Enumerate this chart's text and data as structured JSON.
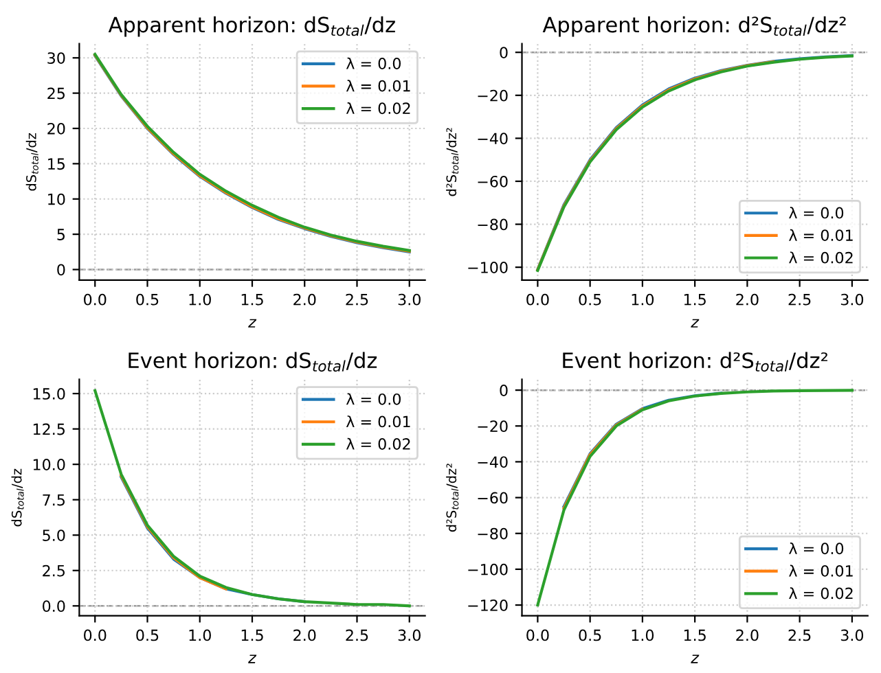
{
  "chart_data": [
    {
      "type": "line",
      "title": "Apparent horizon: dS$_{total}$/dz",
      "xlabel": "z",
      "ylabel": "dS$_{total}$/dz",
      "x": [
        0,
        0.25,
        0.5,
        0.75,
        1.0,
        1.25,
        1.5,
        1.75,
        2.0,
        2.25,
        2.5,
        2.75,
        3.0
      ],
      "xlim": [
        -0.15,
        3.15
      ],
      "xticks": [
        {
          "value": 0,
          "label": "0.0"
        },
        0.5,
        {
          "value": 1,
          "label": "1.0"
        },
        1.5,
        {
          "value": 2,
          "label": "2.0"
        },
        2.5,
        {
          "value": 3,
          "label": "3.0"
        }
      ],
      "ylim": [
        -1.5,
        32
      ],
      "yticks": [
        0,
        5,
        10,
        15,
        20,
        25,
        30
      ],
      "grid": true,
      "legend": "top right",
      "line_style": "solid",
      "ref_lines": [
        {
          "axis": "y",
          "value": 0,
          "line_style": "dashed",
          "color": "#999999"
        }
      ],
      "series": [
        {
          "name": "λ = 0.0",
          "color": "#1f77b4",
          "values": [
            30.3,
            24.6,
            20.0,
            16.3,
            13.2,
            10.8,
            8.8,
            7.1,
            5.8,
            4.7,
            3.8,
            3.1,
            2.5
          ]
        },
        {
          "name": "λ = 0.01",
          "color": "#ff7f0e",
          "values": [
            30.4,
            24.7,
            20.1,
            16.4,
            13.3,
            10.9,
            8.9,
            7.2,
            5.9,
            4.8,
            3.9,
            3.2,
            2.6
          ]
        },
        {
          "name": "λ = 0.02",
          "color": "#2ca02c",
          "values": [
            30.5,
            24.8,
            20.3,
            16.6,
            13.5,
            11.1,
            9.1,
            7.4,
            6.0,
            4.9,
            4.0,
            3.3,
            2.7
          ]
        }
      ]
    },
    {
      "type": "line",
      "title": "Apparent horizon: d²S$_{total}$/dz²",
      "xlabel": "z",
      "ylabel": "d²S$_{total}$/dz²",
      "x": [
        0,
        0.25,
        0.5,
        0.75,
        1.0,
        1.25,
        1.5,
        1.75,
        2.0,
        2.25,
        2.5,
        2.75,
        3.0
      ],
      "xlim": [
        -0.15,
        3.15
      ],
      "xticks": [
        {
          "value": 0,
          "label": "0.0"
        },
        0.5,
        {
          "value": 1,
          "label": "1.0"
        },
        1.5,
        {
          "value": 2,
          "label": "2.0"
        },
        2.5,
        {
          "value": 3,
          "label": "3.0"
        }
      ],
      "ylim": [
        -106,
        4
      ],
      "yticks": [
        {
          "value": -100,
          "label": "−100"
        },
        {
          "value": -80,
          "label": "−80"
        },
        {
          "value": -60,
          "label": "−60"
        },
        {
          "value": -40,
          "label": "−40"
        },
        {
          "value": -20,
          "label": "−20"
        },
        0
      ],
      "grid": true,
      "legend": "bottom right",
      "line_style": "solid",
      "ref_lines": [
        {
          "axis": "y",
          "value": 0,
          "line_style": "dashed",
          "color": "#999999"
        }
      ],
      "series": [
        {
          "name": "λ = 0.0",
          "color": "#1f77b4",
          "values": [
            -101,
            -71,
            -50,
            -35,
            -24.5,
            -17,
            -12,
            -8.5,
            -6,
            -4.2,
            -3,
            -2.1,
            -1.5
          ]
        },
        {
          "name": "λ = 0.01",
          "color": "#ff7f0e",
          "values": [
            -101.2,
            -71.5,
            -50.5,
            -35.5,
            -25,
            -17.5,
            -12.4,
            -8.8,
            -6.2,
            -4.4,
            null,
            null,
            null
          ]
        },
        {
          "name": "λ = 0.02",
          "color": "#2ca02c",
          "values": [
            -101.5,
            -72,
            -51,
            -36,
            -25.5,
            -18,
            -12.8,
            -9.1,
            -6.4,
            -4.6,
            -3.2,
            -2.3,
            -1.7
          ]
        }
      ]
    },
    {
      "type": "line",
      "title": "Event horizon: dS$_{total}$/dz",
      "xlabel": "z",
      "ylabel": "dS$_{total}$/dz",
      "x": [
        0,
        0.25,
        0.5,
        0.75,
        1.0,
        1.25,
        1.5,
        1.75,
        2.0,
        2.25,
        2.5,
        2.75,
        3.0
      ],
      "xlim": [
        -0.15,
        3.15
      ],
      "xticks": [
        {
          "value": 0,
          "label": "0.0"
        },
        0.5,
        {
          "value": 1,
          "label": "1.0"
        },
        1.5,
        {
          "value": 2,
          "label": "2.0"
        },
        2.5,
        {
          "value": 3,
          "label": "3.0"
        }
      ],
      "ylim": [
        -0.7,
        16
      ],
      "yticks": [
        {
          "value": 0,
          "label": "0.0"
        },
        {
          "value": 2.5,
          "label": "2.5"
        },
        {
          "value": 5,
          "label": "5.0"
        },
        {
          "value": 7.5,
          "label": "7.5"
        },
        {
          "value": 10,
          "label": "10.0"
        },
        {
          "value": 12.5,
          "label": "12.5"
        },
        {
          "value": 15,
          "label": "15.0"
        }
      ],
      "grid": true,
      "legend": "top right",
      "line_style": "solid",
      "ref_lines": [
        {
          "axis": "y",
          "value": 0,
          "line_style": "dashed",
          "color": "#999999"
        }
      ],
      "series": [
        {
          "name": "λ = 0.0",
          "color": "#1f77b4",
          "values": [
            null,
            9.1,
            5.5,
            3.3,
            2.0,
            1.2,
            0.8,
            0.5,
            0.3,
            null,
            null,
            null,
            null
          ]
        },
        {
          "name": "λ = 0.01",
          "color": "#ff7f0e",
          "values": [
            null,
            9.2,
            5.6,
            3.4,
            2.0,
            1.2,
            null,
            null,
            null,
            null,
            null,
            null,
            null
          ]
        },
        {
          "name": "λ = 0.02",
          "color": "#2ca02c",
          "values": [
            15.2,
            9.3,
            5.7,
            3.5,
            2.1,
            1.3,
            0.8,
            0.5,
            0.3,
            0.2,
            0.1,
            0.1,
            0.0
          ]
        }
      ]
    },
    {
      "type": "line",
      "title": "Event horizon: d²S$_{total}$/dz²",
      "xlabel": "z",
      "ylabel": "d²S$_{total}$/dz²",
      "x": [
        0,
        0.25,
        0.5,
        0.75,
        1.0,
        1.25,
        1.5,
        1.75,
        2.0,
        2.25,
        2.5,
        2.75,
        3.0
      ],
      "xlim": [
        -0.15,
        3.15
      ],
      "xticks": [
        {
          "value": 0,
          "label": "0.0"
        },
        0.5,
        {
          "value": 1,
          "label": "1.0"
        },
        1.5,
        {
          "value": 2,
          "label": "2.0"
        },
        2.5,
        {
          "value": 3,
          "label": "3.0"
        }
      ],
      "ylim": [
        -126,
        6
      ],
      "yticks": [
        {
          "value": -120,
          "label": "−120"
        },
        {
          "value": -100,
          "label": "−100"
        },
        {
          "value": -80,
          "label": "−80"
        },
        {
          "value": -60,
          "label": "−60"
        },
        {
          "value": -40,
          "label": "−40"
        },
        {
          "value": -20,
          "label": "−20"
        },
        0
      ],
      "grid": true,
      "legend": "bottom right",
      "line_style": "solid",
      "ref_lines": [
        {
          "axis": "y",
          "value": 0,
          "line_style": "dashed",
          "color": "#999999"
        }
      ],
      "series": [
        {
          "name": "λ = 0.0",
          "color": "#1f77b4",
          "values": [
            null,
            -65,
            -35.5,
            -19,
            -10.3,
            -5.6,
            -3.1,
            -1.7,
            null,
            null,
            null,
            null,
            null
          ]
        },
        {
          "name": "λ = 0.01",
          "color": "#ff7f0e",
          "values": [
            null,
            -66,
            -36,
            -19.5,
            -10.6,
            null,
            null,
            null,
            null,
            null,
            null,
            null,
            null
          ]
        },
        {
          "name": "λ = 0.02",
          "color": "#2ca02c",
          "values": [
            -120,
            -67,
            -37,
            -20,
            -11,
            -6,
            -3.3,
            -1.8,
            -1,
            -0.5,
            -0.3,
            -0.2,
            -0.1
          ]
        }
      ]
    }
  ]
}
